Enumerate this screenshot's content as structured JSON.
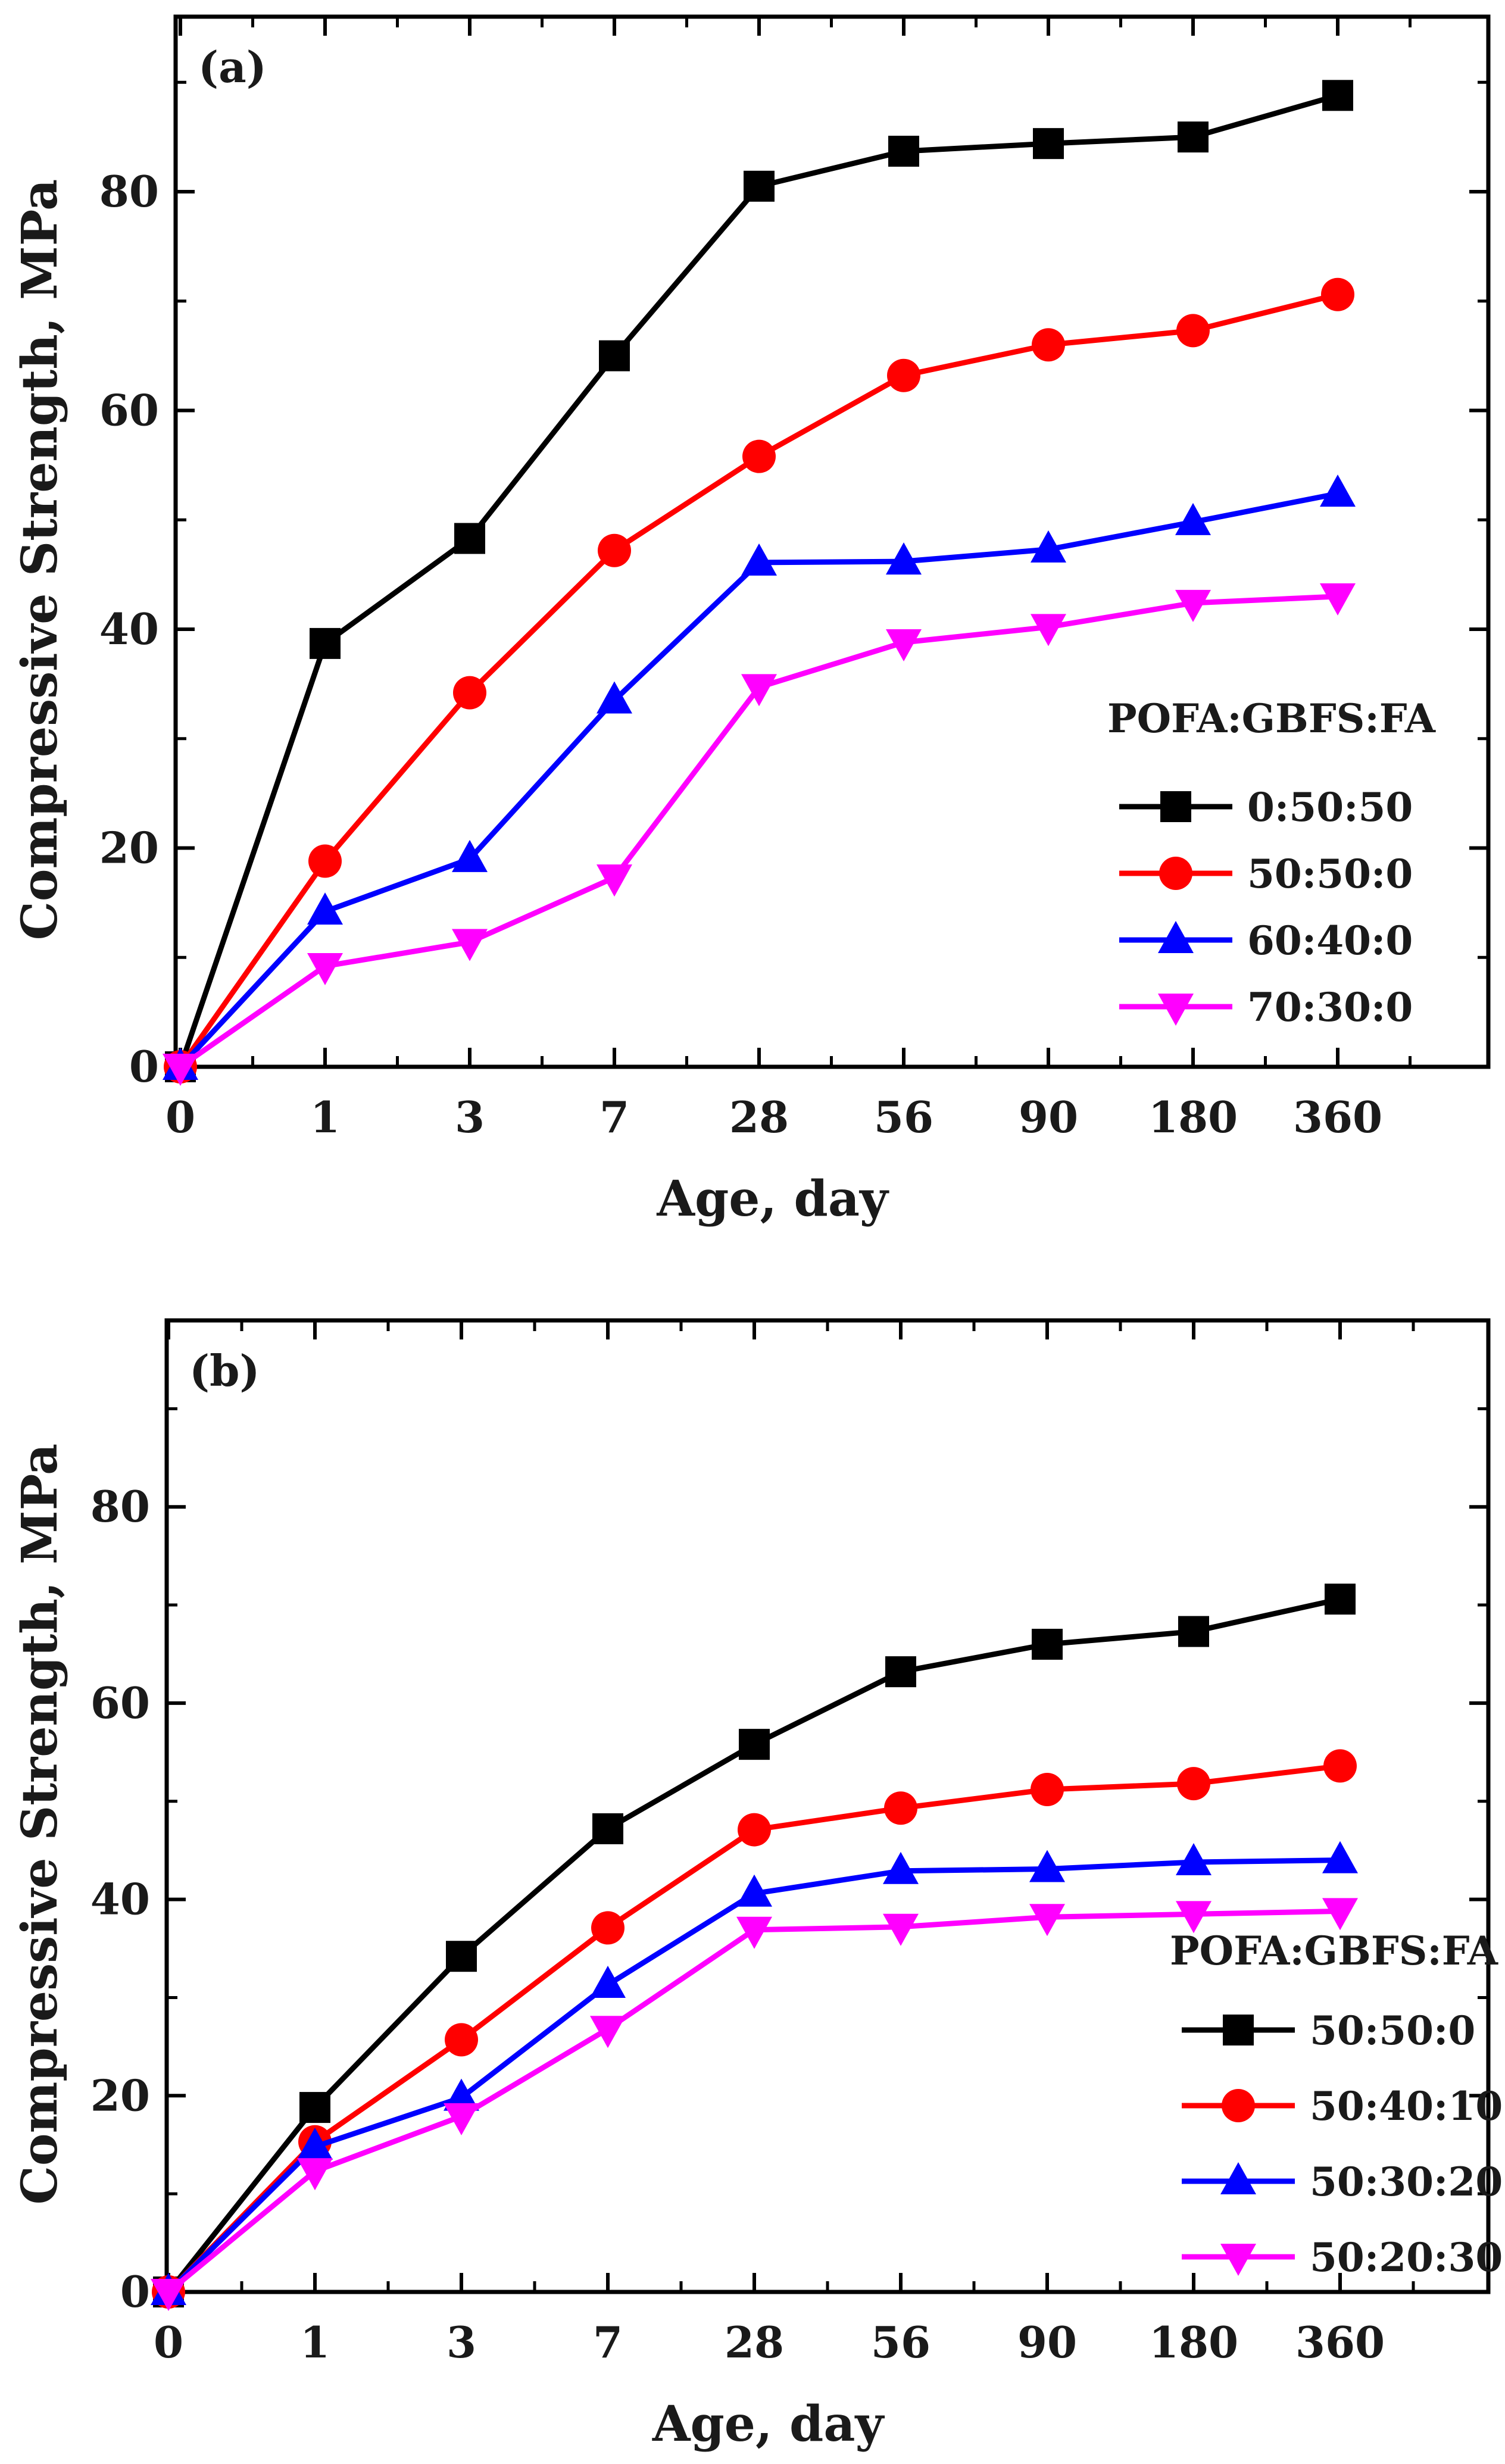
{
  "chart_data": [
    {
      "type": "line",
      "panel_label": "(a)",
      "title": "",
      "xlabel": "Age, day",
      "ylabel": "Compressive Strength, MPa",
      "categories": [
        "0",
        "1",
        "3",
        "7",
        "28",
        "56",
        "90",
        "180",
        "360"
      ],
      "ylim": [
        0,
        96
      ],
      "yticks": [
        "0",
        "20",
        "40",
        "60",
        "80"
      ],
      "legend_title": "POFA:GBFS:FA",
      "legend_position": "lower-right",
      "series": [
        {
          "name": "0:50:50",
          "color": "#000000",
          "marker": "square",
          "values": [
            0,
            38.7,
            48.3,
            65.0,
            80.5,
            83.7,
            84.4,
            85.0,
            88.8
          ]
        },
        {
          "name": "50:50:0",
          "color": "#ff0000",
          "marker": "circle",
          "values": [
            0,
            18.8,
            34.2,
            47.2,
            55.8,
            63.2,
            66.0,
            67.3,
            70.6
          ]
        },
        {
          "name": "60:40:0",
          "color": "#0000ff",
          "marker": "triangle-up",
          "values": [
            0,
            14.2,
            19.0,
            33.5,
            46.1,
            46.2,
            47.3,
            49.8,
            52.4
          ]
        },
        {
          "name": "70:30:0",
          "color": "#ff00ff",
          "marker": "triangle-down",
          "values": [
            0,
            9.2,
            11.4,
            17.3,
            34.7,
            38.8,
            40.2,
            42.4,
            43.0
          ]
        }
      ]
    },
    {
      "type": "line",
      "panel_label": "(b)",
      "title": "",
      "xlabel": "Age, day",
      "ylabel": "Compressive Strength, MPa",
      "categories": [
        "0",
        "1",
        "3",
        "7",
        "28",
        "56",
        "90",
        "180",
        "360"
      ],
      "ylim": [
        0,
        99
      ],
      "yticks": [
        "0",
        "20",
        "40",
        "60",
        "80"
      ],
      "legend_title": "POFA:GBFS:FA",
      "legend_position": "lower-right",
      "series": [
        {
          "name": "50:50:0",
          "color": "#000000",
          "marker": "square",
          "values": [
            0,
            18.8,
            34.2,
            47.2,
            55.8,
            63.2,
            66.0,
            67.3,
            70.6
          ]
        },
        {
          "name": "50:40:10",
          "color": "#ff0000",
          "marker": "circle",
          "values": [
            0,
            15.3,
            25.7,
            37.1,
            47.1,
            49.3,
            51.2,
            51.8,
            53.6
          ]
        },
        {
          "name": "50:30:20",
          "color": "#0000ff",
          "marker": "triangle-up",
          "values": [
            0,
            14.8,
            19.8,
            31.3,
            40.6,
            42.9,
            43.1,
            43.8,
            44.0
          ]
        },
        {
          "name": "50:20:30",
          "color": "#ff00ff",
          "marker": "triangle-down",
          "values": [
            0,
            12.3,
            17.9,
            26.8,
            36.9,
            37.2,
            38.2,
            38.5,
            38.8
          ]
        }
      ]
    }
  ]
}
